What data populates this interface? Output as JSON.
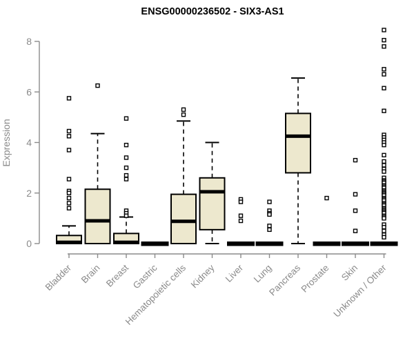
{
  "chart_data": {
    "type": "boxplot",
    "title": "ENSG00000236502 - SIX3-AS1",
    "ylabel": "Expression",
    "xlabel": "",
    "ylim": [
      0,
      8
    ],
    "yticks": [
      0,
      2,
      4,
      6,
      8
    ],
    "grid": false,
    "legend": "none",
    "categories": [
      "Bladder",
      "Brain",
      "Breast",
      "Gastric",
      "Hematopoietic cells",
      "Kidney",
      "Liver",
      "Lung",
      "Pancreas",
      "Prostate",
      "Skin",
      "Unknown / Other"
    ],
    "boxes": [
      {
        "category": "Bladder",
        "q1": 0,
        "median": 0.05,
        "q3": 0.32,
        "whisker_low": 0,
        "whisker_high": 0.7,
        "outliers": [
          5.75,
          4.45,
          4.25,
          3.7,
          2.55,
          2.08,
          2.0,
          1.8,
          1.6,
          1.4
        ]
      },
      {
        "category": "Brain",
        "q1": 0,
        "median": 0.9,
        "q3": 2.15,
        "whisker_low": 0,
        "whisker_high": 4.35,
        "outliers": [
          6.25
        ]
      },
      {
        "category": "Breast",
        "q1": 0,
        "median": 0.05,
        "q3": 0.4,
        "whisker_low": 0,
        "whisker_high": 1.05,
        "outliers": [
          4.95,
          3.9,
          3.4,
          3.0,
          2.7,
          2.55,
          1.3,
          1.2,
          1.1
        ]
      },
      {
        "category": "Gastric",
        "q1": 0,
        "median": 0,
        "q3": 0,
        "whisker_low": 0,
        "whisker_high": 0,
        "outliers": []
      },
      {
        "category": "Hematopoietic cells",
        "q1": 0,
        "median": 0.88,
        "q3": 1.95,
        "whisker_low": 0,
        "whisker_high": 4.85,
        "outliers": [
          5.3,
          5.1
        ]
      },
      {
        "category": "Kidney",
        "q1": 0.55,
        "median": 2.05,
        "q3": 2.6,
        "whisker_low": 0,
        "whisker_high": 4.0,
        "outliers": []
      },
      {
        "category": "Liver",
        "q1": 0,
        "median": 0,
        "q3": 0,
        "whisker_low": 0,
        "whisker_high": 0,
        "outliers": [
          1.75,
          1.65,
          1.1,
          0.9
        ]
      },
      {
        "category": "Lung",
        "q1": 0,
        "median": 0,
        "q3": 0,
        "whisker_low": 0,
        "whisker_high": 0,
        "outliers": [
          1.65,
          1.3,
          1.2,
          1.15,
          0.7,
          0.55
        ]
      },
      {
        "category": "Pancreas",
        "q1": 2.8,
        "median": 4.25,
        "q3": 5.15,
        "whisker_low": 0,
        "whisker_high": 6.55,
        "outliers": []
      },
      {
        "category": "Prostate",
        "q1": 0,
        "median": 0,
        "q3": 0,
        "whisker_low": 0,
        "whisker_high": 0,
        "outliers": [
          1.8
        ]
      },
      {
        "category": "Skin",
        "q1": 0,
        "median": 0,
        "q3": 0,
        "whisker_low": 0,
        "whisker_high": 0,
        "outliers": [
          3.3,
          1.95,
          1.3,
          0.5
        ]
      },
      {
        "category": "Unknown / Other",
        "q1": 0,
        "median": 0,
        "q3": 0,
        "whisker_low": 0,
        "whisker_high": 0,
        "outliers": [
          8.45,
          8.05,
          7.8,
          6.9,
          6.7,
          6.15,
          5.25,
          4.3,
          4.2,
          4.1,
          4.0,
          3.9,
          3.5,
          3.25,
          3.1,
          2.95,
          2.85,
          2.6,
          2.5,
          2.45,
          2.4,
          2.3,
          2.25,
          2.2,
          2.1,
          2.05,
          2.0,
          1.95,
          1.9,
          1.8,
          1.75,
          1.7,
          1.6,
          1.55,
          1.5,
          1.4,
          1.35,
          1.3,
          1.25,
          1.2,
          1.1,
          1.05,
          1.0,
          0.75,
          0.65,
          0.5,
          0.35,
          0.25
        ]
      }
    ],
    "colors": {
      "box_fill": "#EDE8CE",
      "box_stroke": "#000000",
      "median": "#000000",
      "whisker": "#000000",
      "outlier_stroke": "#000000",
      "outlier_fill": "#ffffff",
      "axis": "#8a8a8a",
      "tick_label": "#8a8a8a",
      "title": "#000000"
    }
  }
}
